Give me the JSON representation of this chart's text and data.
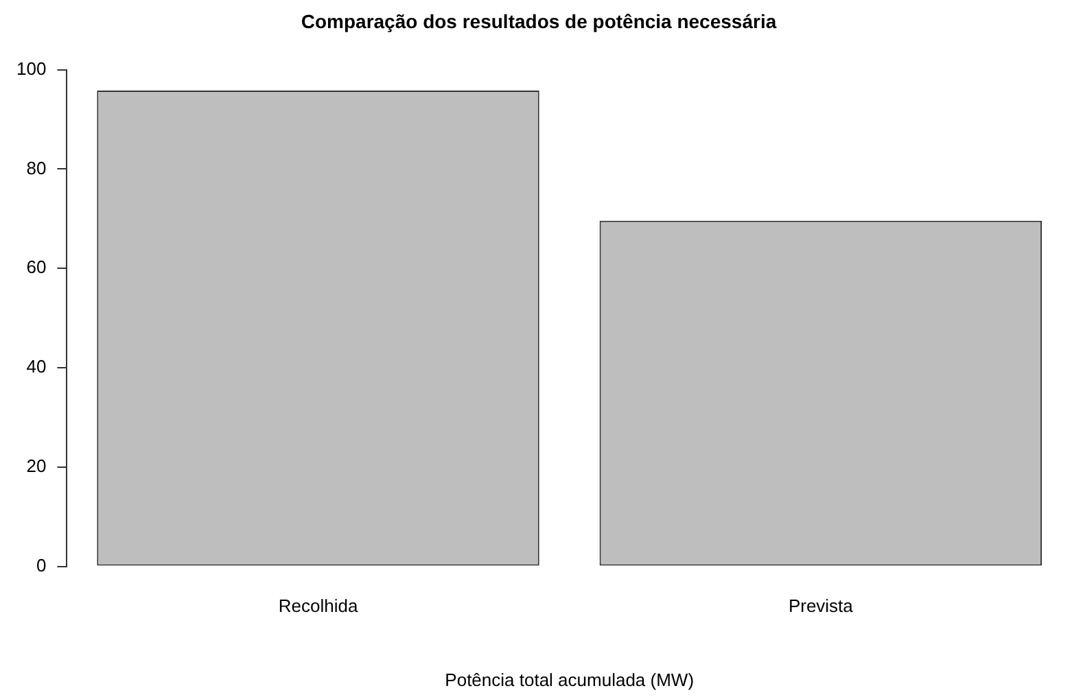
{
  "chart_data": {
    "type": "bar",
    "title": "Comparação dos resultados de potência necessária",
    "xlabel": "Potência total acumulada (MW)",
    "categories": [
      "Recolhida",
      "Prevista"
    ],
    "values": [
      95.8,
      69.6
    ],
    "color": "#bebebe",
    "ylim": [
      0,
      100
    ],
    "yticks": [
      0,
      20,
      40,
      60,
      80,
      100
    ],
    "grid": false,
    "legend": false
  }
}
